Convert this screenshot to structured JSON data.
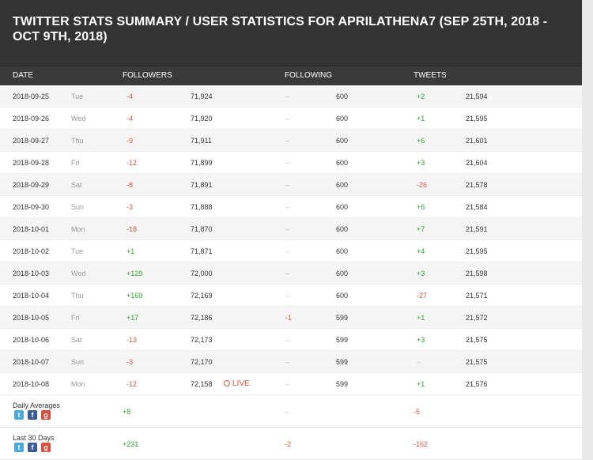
{
  "title": "TWITTER STATS SUMMARY / USER STATISTICS FOR APRILATHENA7 (SEP 25TH, 2018 - OCT 9TH, 2018)",
  "columns": {
    "date": "DATE",
    "followers": "FOLLOWERS",
    "following": "FOLLOWING",
    "tweets": "TWEETS"
  },
  "rows": [
    {
      "date": "2018-09-25",
      "dow": "Tue",
      "f_change": "-4",
      "followers": "71,924",
      "g_change": "–",
      "following": "600",
      "t_change": "+2",
      "tweets": "21,594"
    },
    {
      "date": "2018-09-26",
      "dow": "Wed",
      "f_change": "-4",
      "followers": "71,920",
      "g_change": "–",
      "following": "600",
      "t_change": "+1",
      "tweets": "21,595"
    },
    {
      "date": "2018-09-27",
      "dow": "Thu",
      "f_change": "-9",
      "followers": "71,911",
      "g_change": "–",
      "following": "600",
      "t_change": "+6",
      "tweets": "21,601"
    },
    {
      "date": "2018-09-28",
      "dow": "Fri",
      "f_change": "-12",
      "followers": "71,899",
      "g_change": "–",
      "following": "600",
      "t_change": "+3",
      "tweets": "21,604"
    },
    {
      "date": "2018-09-29",
      "dow": "Sat",
      "f_change": "-8",
      "followers": "71,891",
      "g_change": "–",
      "following": "600",
      "t_change": "-26",
      "tweets": "21,578"
    },
    {
      "date": "2018-09-30",
      "dow": "Sun",
      "f_change": "-3",
      "followers": "71,888",
      "g_change": "–",
      "following": "600",
      "t_change": "+6",
      "tweets": "21,584"
    },
    {
      "date": "2018-10-01",
      "dow": "Mon",
      "f_change": "-18",
      "followers": "71,870",
      "g_change": "–",
      "following": "600",
      "t_change": "+7",
      "tweets": "21,591"
    },
    {
      "date": "2018-10-02",
      "dow": "Tue",
      "f_change": "+1",
      "followers": "71,871",
      "g_change": "–",
      "following": "600",
      "t_change": "+4",
      "tweets": "21,595"
    },
    {
      "date": "2018-10-03",
      "dow": "Wed",
      "f_change": "+129",
      "followers": "72,000",
      "g_change": "–",
      "following": "600",
      "t_change": "+3",
      "tweets": "21,598"
    },
    {
      "date": "2018-10-04",
      "dow": "Thu",
      "f_change": "+169",
      "followers": "72,169",
      "g_change": "–",
      "following": "600",
      "t_change": "-27",
      "tweets": "21,571"
    },
    {
      "date": "2018-10-05",
      "dow": "Fri",
      "f_change": "+17",
      "followers": "72,186",
      "g_change": "-1",
      "following": "599",
      "t_change": "+1",
      "tweets": "21,572"
    },
    {
      "date": "2018-10-06",
      "dow": "Sat",
      "f_change": "-13",
      "followers": "72,173",
      "g_change": "–",
      "following": "599",
      "t_change": "+3",
      "tweets": "21,575"
    },
    {
      "date": "2018-10-07",
      "dow": "Sun",
      "f_change": "-3",
      "followers": "72,170",
      "g_change": "–",
      "following": "599",
      "t_change": "–",
      "tweets": "21,575"
    },
    {
      "date": "2018-10-08",
      "dow": "Mon",
      "f_change": "-12",
      "followers": "72,158",
      "live": "LIVE",
      "g_change": "–",
      "following": "599",
      "t_change": "+1",
      "tweets": "21,576"
    }
  ],
  "summary": [
    {
      "label": "Daily Averages",
      "followers": "+8",
      "following": "–",
      "tweets": "-5"
    },
    {
      "label": "Last 30 Days",
      "followers": "+231",
      "following": "-2",
      "tweets": "-162"
    }
  ],
  "icons": {
    "twitter": "twitter-icon",
    "facebook": "facebook-icon",
    "google_plus": "google-plus-icon",
    "live": "clock-icon"
  },
  "colors": {
    "header_bg": "#333333",
    "negative": "#e0533a",
    "positive": "#2aa52a",
    "twitter": "#4aa8e0",
    "facebook": "#3b5a99",
    "google_plus": "#dd4b39"
  }
}
